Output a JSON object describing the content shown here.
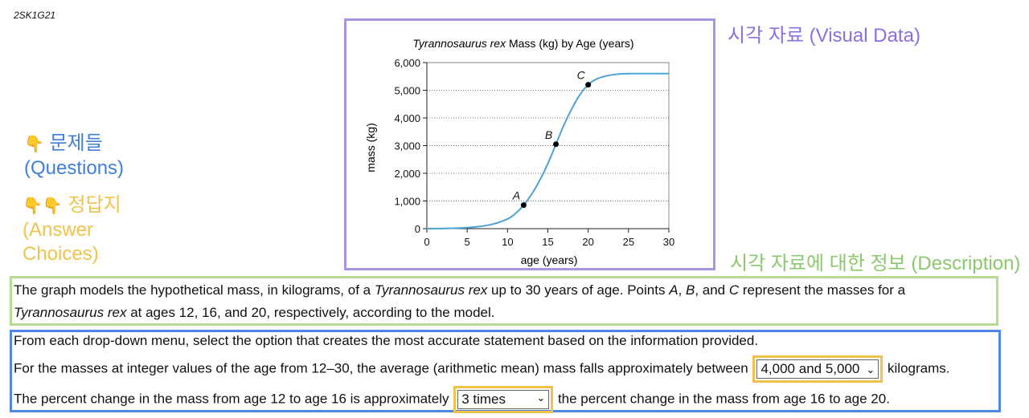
{
  "page": {
    "id": "2SK1G21"
  },
  "labels": {
    "visual": "시각 자료 (Visual Data)",
    "questions_line1": "문제들",
    "questions_line2": "(Questions)",
    "answers_line1": "정답지",
    "answers_line2": "(Answer",
    "answers_line3": "Choices)",
    "description": "시각 자료에 대한 정보 (Description)"
  },
  "icons": {
    "pointing_hand": "👇"
  },
  "colors": {
    "visual": "#a993e6",
    "questions": "#4f86e6",
    "answers": "#f0c24b",
    "description": "#b6dc94",
    "curve": "#4da3d4"
  },
  "description": {
    "part1": "The graph models the hypothetical mass, in kilograms, of a ",
    "species": "Tyrannosaurus rex",
    "part2": " up to 30 years of age. Points ",
    "point_a": "A",
    "comma1": ", ",
    "point_b": "B",
    "and_text": ", and ",
    "point_c": "C",
    "part3": " represent the masses for a",
    "species2": "Tyrannosaurus rex",
    "part4": " at ages 12, 16, and 20, respectively, according to the model."
  },
  "questions": {
    "instructions": "From each drop-down menu, select the option that creates the most accurate statement based on the information provided.",
    "q1_before": "For the masses at integer values of the age from 12–30, the average (arithmetic mean) mass falls approximately between",
    "q1_selected": "4,000 and 5,000",
    "q1_after": "kilograms.",
    "q2_before": "The percent change in the mass from age 12 to age 16 is approximately",
    "q2_selected": "3 times",
    "q2_after": "the percent change in the mass from age 16 to age 20."
  },
  "chart_data": {
    "type": "line",
    "title_italic": "Tyrannosaurus rex",
    "title_rest": " Mass (kg) by Age (years)",
    "xlabel": "age (years)",
    "ylabel": "mass (kg)",
    "xlim": [
      0,
      30
    ],
    "ylim": [
      0,
      6000
    ],
    "x_ticks": [
      0,
      5,
      10,
      15,
      20,
      25,
      30
    ],
    "y_ticks": [
      0,
      1000,
      2000,
      3000,
      4000,
      5000,
      6000
    ],
    "x_tick_labels": [
      "0",
      "5",
      "10",
      "15",
      "20",
      "25",
      "30"
    ],
    "y_tick_labels": [
      "0",
      "1,000",
      "2,000",
      "3,000",
      "4,000",
      "5,000",
      "6,000"
    ],
    "grid": "horizontal dotted",
    "series": [
      {
        "name": "mass",
        "x": [
          0,
          2,
          4,
          6,
          8,
          10,
          11,
          12,
          13,
          14,
          15,
          16,
          17,
          18,
          19,
          20,
          21,
          22,
          23,
          24,
          25,
          26,
          27,
          28,
          29,
          30
        ],
        "y": [
          0,
          5,
          20,
          60,
          150,
          350,
          550,
          850,
          1250,
          1750,
          2350,
          3050,
          3750,
          4350,
          4850,
          5200,
          5400,
          5500,
          5560,
          5590,
          5600,
          5600,
          5600,
          5600,
          5600,
          5600
        ]
      }
    ],
    "points": [
      {
        "label": "A",
        "x": 12,
        "y": 850
      },
      {
        "label": "B",
        "x": 16,
        "y": 3050
      },
      {
        "label": "C",
        "x": 20,
        "y": 5200
      }
    ]
  }
}
